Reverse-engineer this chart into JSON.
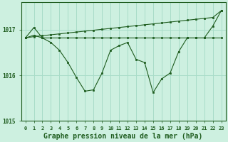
{
  "title": "Graphe pression niveau de la mer (hPa)",
  "background_color": "#cdf0e0",
  "grid_color": "#a8dcc8",
  "line_color": "#1e5c1e",
  "marker_color": "#1e5c1e",
  "x_labels": [
    "0",
    "1",
    "2",
    "3",
    "4",
    "5",
    "6",
    "7",
    "8",
    "9",
    "10",
    "11",
    "12",
    "13",
    "14",
    "15",
    "16",
    "17",
    "18",
    "19",
    "20",
    "21",
    "22",
    "23"
  ],
  "x_values": [
    0,
    1,
    2,
    3,
    4,
    5,
    6,
    7,
    8,
    9,
    10,
    11,
    12,
    13,
    14,
    15,
    16,
    17,
    18,
    19,
    20,
    21,
    22,
    23
  ],
  "line_trend_y": [
    1016.82,
    1016.85,
    1016.87,
    1016.89,
    1016.91,
    1016.93,
    1016.95,
    1016.97,
    1016.99,
    1017.01,
    1017.03,
    1017.05,
    1017.07,
    1017.09,
    1017.11,
    1017.13,
    1017.15,
    1017.17,
    1017.19,
    1017.21,
    1017.23,
    1017.25,
    1017.27,
    1017.42
  ],
  "line_flat_y": [
    1016.82,
    1016.88,
    1016.82,
    1016.82,
    1016.82,
    1016.82,
    1016.82,
    1016.82,
    1016.82,
    1016.82,
    1016.82,
    1016.82,
    1016.82,
    1016.82,
    1016.82,
    1016.82,
    1016.82,
    1016.82,
    1016.82,
    1016.82,
    1016.82,
    1016.82,
    1016.82,
    1016.82
  ],
  "line_jagged_y": [
    1016.82,
    1017.05,
    1016.82,
    1016.72,
    1016.55,
    1016.28,
    1015.95,
    1015.65,
    1015.68,
    1016.05,
    1016.55,
    1016.65,
    1016.72,
    1016.35,
    1016.28,
    1015.62,
    1015.92,
    1016.05,
    1016.52,
    1016.82,
    1016.82,
    1016.82,
    1017.08,
    1017.42
  ],
  "ylim": [
    1015.0,
    1017.6
  ],
  "yticks": [
    1015,
    1016,
    1017
  ],
  "title_fontsize": 7.0,
  "tick_fontsize": 5.0
}
